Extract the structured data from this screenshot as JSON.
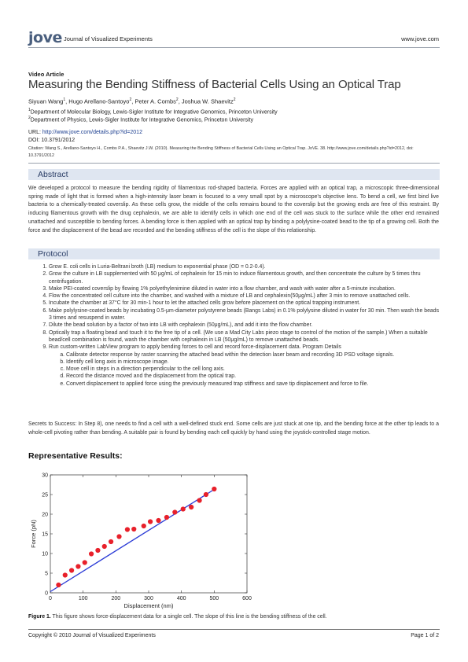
{
  "header": {
    "logo": "jove",
    "journal": "Journal of Visualized Experiments",
    "site": "www.jove.com"
  },
  "article_type": "Video Article",
  "title": "Measuring the Bending Stiffness of Bacterial Cells Using an Optical Trap",
  "authors": [
    {
      "name": "Siyuan Wang",
      "aff": "1"
    },
    {
      "name": "Hugo Arellano-Santoyo",
      "aff": "2"
    },
    {
      "name": "Peter A. Combs",
      "aff": "2"
    },
    {
      "name": "Joshua W. Shaevitz",
      "aff": "2"
    }
  ],
  "affiliations": [
    {
      "num": "1",
      "text": "Department of Molecular Biology, Lewis-Sigler Institute for Integrative Genomics, Princeton University"
    },
    {
      "num": "2",
      "text": "Department of Physics, Lewis-Sigler Institute for Integrative Genomics, Princeton University"
    }
  ],
  "url_label": "URL:",
  "url": "http://www.jove.com/details.php?id=2012",
  "doi": "DOI: 10.3791/2012",
  "citation": "Citation: Wang S., Arellano-Santoyo H., Combs P.A., Shaevitz J.W. (2010). Measuring the Bending Stiffness of Bacterial Cells Using an Optical Trap. JoVE. 38. http://www.jove.com/details.php?id=2012, doi: 10.3791/2012",
  "abstract": {
    "heading": "Abstract",
    "text": "We developed a protocol to measure the bending rigidity of filamentous rod-shaped bacteria. Forces are applied with an optical trap, a microscopic three-dimensional spring made of light that is formed when a high-intensity laser beam is focused to a very small spot by a microscope's objective lens. To bend a cell, we first bind live bacteria to a chemically-treated coverslip. As these cells grow, the middle of the cells remains bound to the coverslip but the growing ends are free of this restraint. By inducing filamentous growth with the drug cephalexin, we are able to identify cells in which one end of the cell was stuck to the surface while the other end remained unattached and susceptible to bending forces. A bending force is then applied with an optical trap by binding a polylysine-coated bead to the tip of a growing cell. Both the force and the displacement of the bead are recorded and the bending stiffness of the cell is the slope of this relationship."
  },
  "protocol": {
    "heading": "Protocol",
    "steps": [
      "Grow E. coli cells in Luria-Beltrani broth (LB) medium to exponential phase (OD = 0.2-0.4).",
      "Grow the culture in LB supplemented with 50 μg/mL of cephalexin for 15 min to induce filamentous growth, and then concentrate the culture by 5 times thru centrifugation.",
      "Make PEI-coated coverslip by flowing 1% polyethylenimine diluted in water into a flow chamber, and wash with water after a 5-minute incubation.",
      "Flow the concentrated cell culture into the chamber, and washed with a mixture of LB and cephalexin(50μg/mL) after 3 min to remove unattached cells.",
      "Incubate the chamber at 37°C for 30 min-1 hour to let the attached cells grow before placement on the optical trapping instrument.",
      "Make polylysine-coated beads by incubating 0.5-μm-diameter polystyrene beads (Bangs Labs) in 0.1% polylysine diluted in water for 30 min. Then wash the beads 3 times and resuspend in water.",
      "Dilute the bead solution by a factor of two into LB with cephalexin (50μg/mL), and add it into the flow chamber.",
      "Optically trap a floating bead and touch it to the free tip of a cell. (We use a Mad City Labs piezo stage to control of the motion of the sample.) When a suitable bead/cell combination is found, wash the chamber with cephalexin in LB (50μg/mL) to remove unattached beads.",
      "Run custom-written LabView program to apply bending forces to cell and record force-displacement data. Program Details"
    ],
    "substeps": [
      "Calibrate detector response by raster scanning the attached bead within the detection laser beam and recording 3D PSD voltage signals.",
      "Identify cell long axis in microscope image.",
      "Move cell in steps in a direction perpendicular to the cell long axis.",
      "Record the distance moved and the displacement from the optical trap.",
      "Convert displacement to applied force using the previously measured trap stiffness and save tip displacement and force to file."
    ],
    "secrets": "Secrets to Success: In Step 8), one needs to find a cell with a well-defined stuck end. Some cells are just stuck at one tip, and the bending force at the other tip leads to a whole-cell pivoting rather than bending. A suitable pair is found by bending each cell quickly by hand using the joystick-controlled stage motion."
  },
  "results_heading": "Representative Results:",
  "chart_data": {
    "type": "scatter",
    "xlabel": "Displacement (nm)",
    "ylabel": "Force (pN)",
    "xlim": [
      0,
      600
    ],
    "ylim": [
      0,
      30
    ],
    "xticks": [
      0,
      100,
      200,
      300,
      400,
      500,
      600
    ],
    "yticks": [
      0,
      5,
      10,
      15,
      20,
      25,
      30
    ],
    "points": {
      "x": [
        25,
        45,
        65,
        85,
        105,
        125,
        145,
        165,
        185,
        210,
        235,
        255,
        285,
        305,
        330,
        355,
        380,
        405,
        430,
        455,
        475,
        500
      ],
      "y": [
        2.0,
        4.5,
        5.7,
        6.7,
        7.7,
        9.9,
        10.8,
        11.8,
        13.0,
        14.3,
        16.1,
        16.2,
        17.0,
        18.1,
        18.4,
        19.2,
        20.5,
        21.3,
        21.8,
        23.5,
        25.0,
        26.4
      ]
    },
    "fit_line": {
      "x": [
        0,
        500
      ],
      "y": [
        0.3,
        26.3
      ]
    },
    "point_color": "#e8202a",
    "line_color": "#2b3bd6",
    "grid": false
  },
  "caption": {
    "label": "Figure 1.",
    "text": " This figure shows force-displacement data for a single cell. The slope of this line is the bending stiffness of the cell."
  },
  "footer": {
    "copyright": "Copyright © 2010 Journal of Visualized Experiments",
    "page": "Page 1 of 2"
  }
}
